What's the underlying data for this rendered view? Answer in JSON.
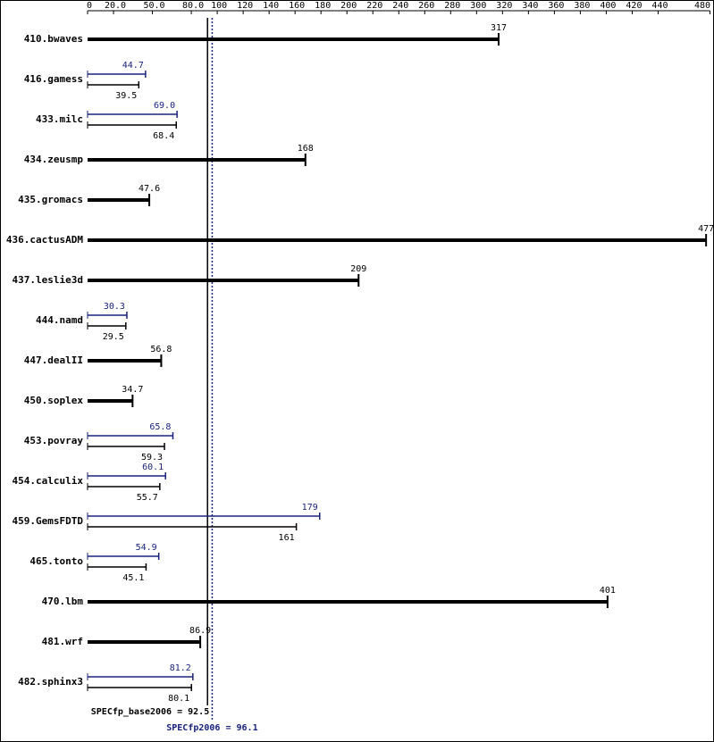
{
  "chart_data": {
    "type": "bar",
    "orientation": "horizontal",
    "categories": [
      "410.bwaves",
      "416.gamess",
      "433.milc",
      "434.zeusmp",
      "435.gromacs",
      "436.cactusADM",
      "437.leslie3d",
      "444.namd",
      "447.dealII",
      "450.soplex",
      "453.povray",
      "454.calculix",
      "459.GemsFDTD",
      "465.tonto",
      "470.lbm",
      "481.wrf",
      "482.sphinx3"
    ],
    "series": [
      {
        "name": "base",
        "color": "#000000",
        "values": [
          317,
          39.5,
          68.4,
          168,
          47.6,
          477,
          209,
          29.5,
          56.8,
          34.7,
          59.3,
          55.7,
          161,
          45.1,
          401,
          86.9,
          80.1
        ]
      },
      {
        "name": "peak",
        "color": "#1a237e",
        "values": [
          null,
          44.7,
          69.0,
          null,
          null,
          null,
          null,
          30.3,
          null,
          null,
          65.8,
          60.1,
          179,
          54.9,
          null,
          null,
          81.2
        ],
        "value_labels": [
          null,
          "44.7",
          "69.0",
          null,
          null,
          null,
          null,
          "30.3",
          null,
          null,
          "65.8",
          "60.1",
          "179",
          "54.9",
          null,
          null,
          "81.2"
        ]
      }
    ],
    "xlim": [
      0,
      480
    ],
    "xticks": [
      0,
      {
        "value": 20,
        "label": "20.0"
      },
      {
        "value": 50,
        "label": "50.0"
      },
      {
        "value": 80,
        "label": "80.0"
      },
      100,
      120,
      140,
      160,
      180,
      200,
      220,
      240,
      260,
      280,
      300,
      320,
      340,
      360,
      380,
      400,
      420,
      440,
      480
    ],
    "reference_lines": [
      {
        "text": "SPECfp_base2006 = 92.5",
        "value": 92.5,
        "color": "#000000",
        "style": "solid"
      },
      {
        "text": "SPECfp2006 = 96.1",
        "value": 96.1,
        "color": "#1a237e",
        "style": "dotted"
      }
    ]
  }
}
